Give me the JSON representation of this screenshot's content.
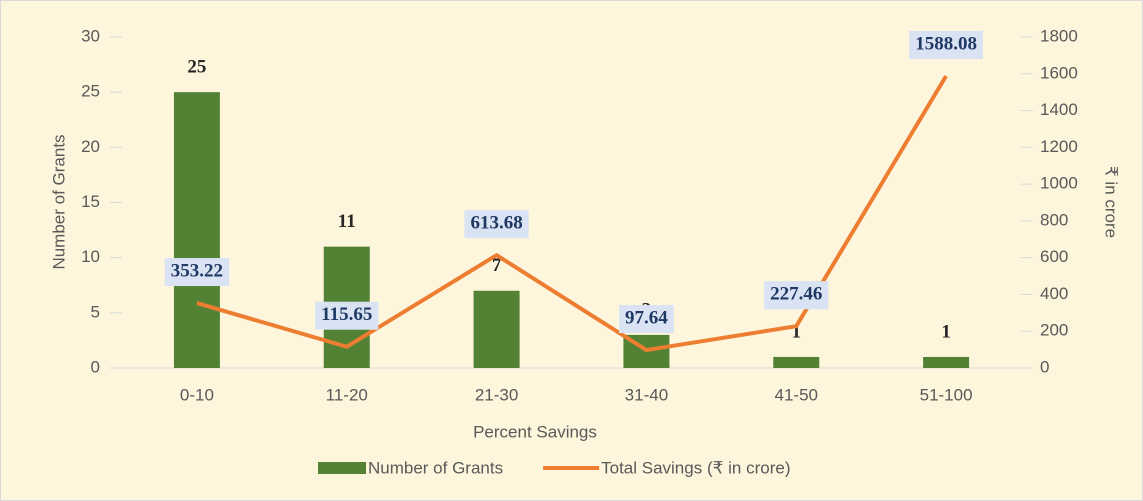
{
  "chart_data": {
    "type": "combo",
    "categories": [
      "0-10",
      "11-20",
      "21-30",
      "31-40",
      "41-50",
      "51-100"
    ],
    "series": [
      {
        "name": "Number of Grants",
        "type": "bar",
        "color": "#548235",
        "values": [
          25,
          11,
          7,
          3,
          1,
          1
        ]
      },
      {
        "name": "Total Savings (₹ in crore)",
        "type": "line",
        "axis": "y2",
        "color": "#ed7d31",
        "values": [
          353.22,
          115.65,
          613.68,
          97.64,
          227.46,
          1588.08
        ]
      }
    ],
    "x_label": "Percent Savings",
    "y_label": "Number of Grants",
    "y2_label": "₹ in crore",
    "ylim": [
      0,
      30
    ],
    "yticks": [
      0,
      5,
      10,
      15,
      20,
      25,
      30
    ],
    "y2lim": [
      0,
      1800
    ],
    "y2ticks": [
      0,
      200,
      400,
      600,
      800,
      1000,
      1200,
      1400,
      1600,
      1800
    ],
    "grid": false,
    "legend": "bottom"
  }
}
